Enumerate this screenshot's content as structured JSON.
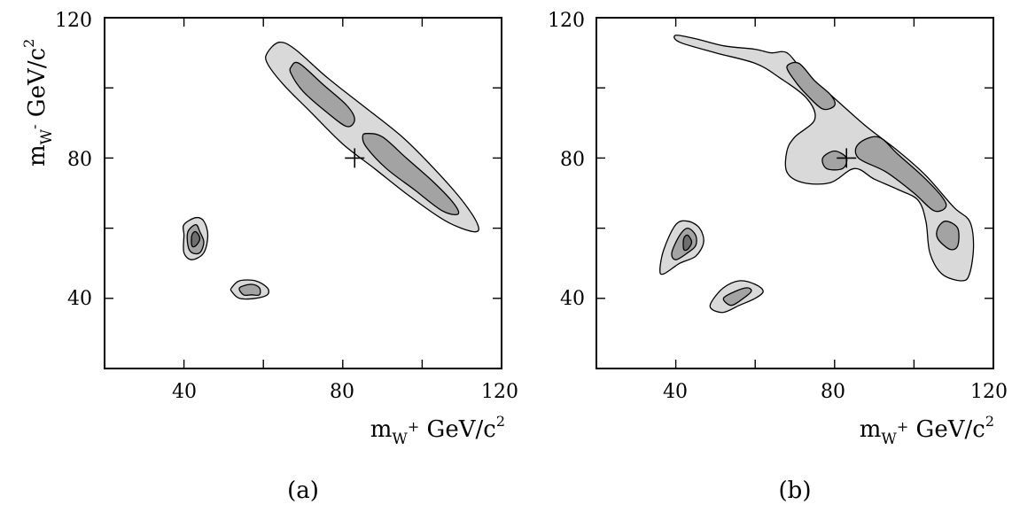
{
  "chart_data": [
    {
      "type": "contour",
      "caption": "(a)",
      "xlabel": {
        "base": "m",
        "sub": "W",
        "subsup": "+",
        "unit": " GeV/c",
        "unit_sup": "2"
      },
      "ylabel": {
        "base": "m",
        "sub": "W",
        "subsup": "-",
        "unit": " GeV/c",
        "unit_sup": "2"
      },
      "xlim": [
        20,
        120
      ],
      "ylim": [
        20,
        120
      ],
      "xticks": [
        40,
        80,
        120
      ],
      "yticks": [
        40,
        80,
        120
      ],
      "xtick_labels": [
        "40",
        "80",
        "120"
      ],
      "ytick_labels": [
        "40",
        "80",
        "120"
      ],
      "grid": false,
      "marker": {
        "x": 83,
        "y": 80,
        "symbol": "+"
      },
      "regions": [
        {
          "name": "",
          "level": 1,
          "points": [
            [
              61,
              110
            ],
            [
              64,
              113
            ],
            [
              68,
              111
            ],
            [
              76,
              103
            ],
            [
              85,
              95
            ],
            [
              95,
              86
            ],
            [
              103,
              77
            ],
            [
              110,
              68
            ],
            [
              114,
              61
            ],
            [
              113,
              59
            ],
            [
              106,
              62
            ],
            [
              97,
              69
            ],
            [
              88,
              77
            ],
            [
              80,
              84
            ],
            [
              72,
              93
            ],
            [
              65,
              101
            ],
            [
              61,
              107
            ]
          ]
        },
        {
          "name": "",
          "level": 2,
          "points": [
            [
              67,
              106
            ],
            [
              69,
              107
            ],
            [
              75,
              101
            ],
            [
              81,
              95
            ],
            [
              83,
              91
            ],
            [
              81,
              89
            ],
            [
              76,
              93
            ],
            [
              70,
              99
            ],
            [
              67,
              104
            ]
          ]
        },
        {
          "name": "",
          "level": 2,
          "points": [
            [
              86,
              87
            ],
            [
              90,
              86
            ],
            [
              96,
              80
            ],
            [
              103,
              73
            ],
            [
              108,
              67
            ],
            [
              109,
              64
            ],
            [
              105,
              65
            ],
            [
              98,
              71
            ],
            [
              91,
              77
            ],
            [
              86,
              83
            ],
            [
              85,
              86
            ]
          ]
        },
        {
          "name": "",
          "level": 1,
          "points": [
            [
              40,
              61
            ],
            [
              43,
              63
            ],
            [
              45,
              62
            ],
            [
              46,
              58
            ],
            [
              45,
              53
            ],
            [
              42,
              51
            ],
            [
              40,
              53
            ],
            [
              40,
              58
            ]
          ]
        },
        {
          "name": "",
          "level": 2,
          "points": [
            [
              41,
              59
            ],
            [
              43,
              61
            ],
            [
              44,
              59
            ],
            [
              45,
              56
            ],
            [
              44,
              53
            ],
            [
              42,
              53
            ],
            [
              41,
              55
            ]
          ]
        },
        {
          "name": "",
          "level": 3,
          "points": [
            [
              42,
              58
            ],
            [
              43,
              59
            ],
            [
              44,
              57
            ],
            [
              43,
              55
            ],
            [
              42,
              55
            ]
          ]
        },
        {
          "name": "",
          "level": 1,
          "points": [
            [
              52,
              43
            ],
            [
              54,
              45
            ],
            [
              58,
              45
            ],
            [
              61,
              43
            ],
            [
              61,
              41
            ],
            [
              58,
              40
            ],
            [
              54,
              40
            ],
            [
              52,
              42
            ]
          ]
        },
        {
          "name": "",
          "level": 2,
          "points": [
            [
              54,
              43
            ],
            [
              57,
              44
            ],
            [
              59,
              43
            ],
            [
              59,
              41
            ],
            [
              57,
              41
            ],
            [
              55,
              41
            ]
          ]
        }
      ]
    },
    {
      "type": "contour",
      "caption": "(b)",
      "xlabel": {
        "base": "m",
        "sub": "W",
        "subsup": "+",
        "unit": " GeV/c",
        "unit_sup": "2"
      },
      "ylabel": {
        "base": "",
        "sub": "",
        "subsup": "",
        "unit": "",
        "unit_sup": ""
      },
      "xlim": [
        20,
        120
      ],
      "ylim": [
        20,
        120
      ],
      "xticks": [
        40,
        80,
        120
      ],
      "yticks": [
        40,
        80,
        120
      ],
      "xtick_labels": [
        "40",
        "80",
        "120"
      ],
      "ytick_labels": [
        "40",
        "80",
        "120"
      ],
      "grid": false,
      "marker": {
        "x": 83,
        "y": 80,
        "symbol": "+"
      },
      "regions": [
        {
          "name": "",
          "level": 1,
          "points": [
            [
              40,
              115
            ],
            [
              45,
              114
            ],
            [
              52,
              112
            ],
            [
              60,
              111
            ],
            [
              64,
              110
            ],
            [
              68,
              110
            ],
            [
              72,
              105
            ],
            [
              80,
              97
            ],
            [
              88,
              89
            ],
            [
              96,
              82
            ],
            [
              103,
              75
            ],
            [
              110,
              66
            ],
            [
              114,
              62
            ],
            [
              115,
              55
            ],
            [
              114,
              47
            ],
            [
              112,
              45
            ],
            [
              107,
              47
            ],
            [
              104,
              53
            ],
            [
              103,
              62
            ],
            [
              101,
              68
            ],
            [
              96,
              71
            ],
            [
              90,
              74
            ],
            [
              85,
              77
            ],
            [
              79,
              73
            ],
            [
              72,
              73
            ],
            [
              68,
              76
            ],
            [
              68,
              82
            ],
            [
              70,
              86
            ],
            [
              75,
              91
            ],
            [
              73,
              97
            ],
            [
              66,
              103
            ],
            [
              60,
              107
            ],
            [
              50,
              110
            ],
            [
              41,
              113
            ]
          ]
        },
        {
          "name": "",
          "level": 2,
          "points": [
            [
              68,
              106
            ],
            [
              71,
              107
            ],
            [
              75,
              102
            ],
            [
              79,
              98
            ],
            [
              80,
              95
            ],
            [
              77,
              94
            ],
            [
              73,
              98
            ],
            [
              70,
              102
            ]
          ]
        },
        {
          "name": "",
          "level": 2,
          "points": [
            [
              86,
              84
            ],
            [
              91,
              86
            ],
            [
              96,
              81
            ],
            [
              102,
              75
            ],
            [
              107,
              69
            ],
            [
              108,
              66
            ],
            [
              105,
              65
            ],
            [
              100,
              70
            ],
            [
              93,
              76
            ],
            [
              86,
              80
            ]
          ]
        },
        {
          "name": "",
          "level": 2,
          "points": [
            [
              77,
              80
            ],
            [
              80,
              82
            ],
            [
              83,
              80
            ],
            [
              82,
              77
            ],
            [
              78,
              77
            ]
          ]
        },
        {
          "name": "",
          "level": 2,
          "points": [
            [
              106,
              60
            ],
            [
              108,
              62
            ],
            [
              111,
              60
            ],
            [
              111,
              55
            ],
            [
              109,
              54
            ],
            [
              106,
              57
            ]
          ]
        },
        {
          "name": "",
          "level": 1,
          "points": [
            [
              37,
              54
            ],
            [
              40,
              61
            ],
            [
              43,
              62
            ],
            [
              46,
              60
            ],
            [
              47,
              56
            ],
            [
              45,
              52
            ],
            [
              41,
              50
            ],
            [
              37,
              47
            ],
            [
              36,
              48
            ]
          ]
        },
        {
          "name": "",
          "level": 2,
          "points": [
            [
              39,
              53
            ],
            [
              41,
              58
            ],
            [
              43,
              60
            ],
            [
              45,
              58
            ],
            [
              45,
              55
            ],
            [
              43,
              53
            ],
            [
              40,
              51
            ]
          ]
        },
        {
          "name": "",
          "level": 3,
          "points": [
            [
              42,
              57
            ],
            [
              43,
              58
            ],
            [
              44,
              56
            ],
            [
              43,
              54
            ],
            [
              42,
              54
            ]
          ]
        },
        {
          "name": "",
          "level": 1,
          "points": [
            [
              49,
              39
            ],
            [
              52,
              43
            ],
            [
              56,
              45
            ],
            [
              60,
              44
            ],
            [
              62,
              42
            ],
            [
              60,
              40
            ],
            [
              56,
              38
            ],
            [
              52,
              36
            ],
            [
              49,
              37
            ]
          ]
        },
        {
          "name": "",
          "level": 2,
          "points": [
            [
              52,
              40
            ],
            [
              55,
              42
            ],
            [
              58,
              43
            ],
            [
              59,
              42
            ],
            [
              57,
              40
            ],
            [
              54,
              38
            ]
          ]
        }
      ]
    }
  ]
}
